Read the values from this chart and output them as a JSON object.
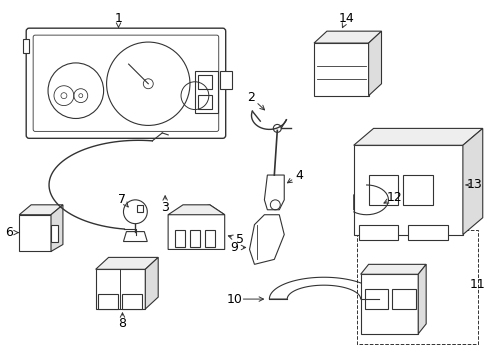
{
  "background_color": "#ffffff",
  "line_color": "#333333",
  "figsize": [
    4.89,
    3.6
  ],
  "dpi": 100,
  "label_fontsize": 9
}
